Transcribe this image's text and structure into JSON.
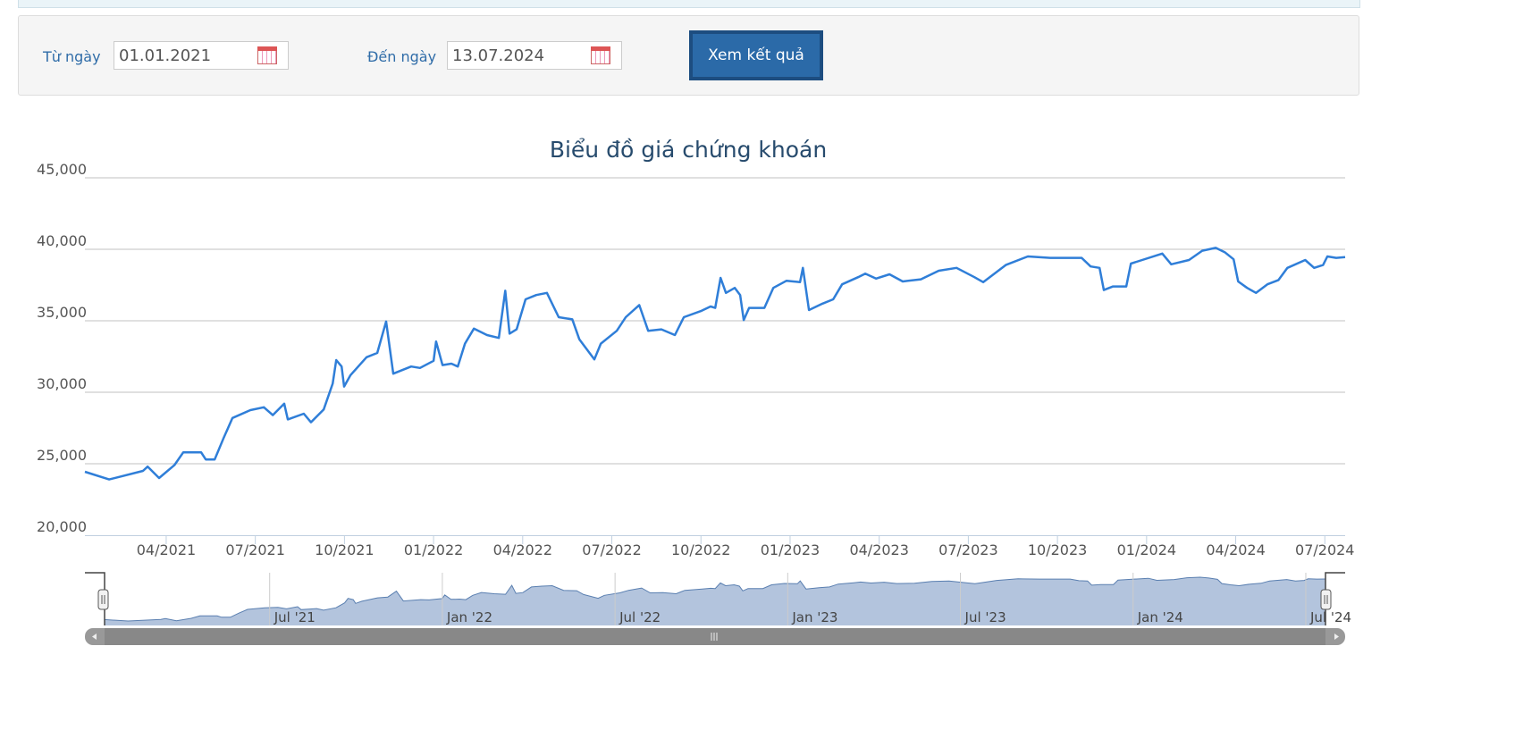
{
  "form": {
    "from_label": "Từ ngày",
    "from_value": "01.01.2021",
    "to_label": "Đến ngày",
    "to_value": "13.07.2024",
    "button": "Xem kết quả"
  },
  "chart_data": {
    "type": "line",
    "title": "Biểu đồ giá chứng khoán",
    "color": "#2f7ed8",
    "grid": true,
    "x": [
      2021.022,
      2021.09,
      2021.185,
      2021.198,
      2021.23,
      2021.273,
      2021.298,
      2021.348,
      2021.361,
      2021.386,
      2021.411,
      2021.436,
      2021.486,
      2021.524,
      2021.549,
      2021.581,
      2021.591,
      2021.636,
      2021.656,
      2021.692,
      2021.717,
      2021.727,
      2021.742,
      2021.749,
      2021.767,
      2021.812,
      2021.842,
      2021.867,
      2021.887,
      2021.937,
      2021.962,
      2022.0,
      2022.007,
      2022.025,
      2022.05,
      2022.068,
      2022.088,
      2022.113,
      2022.15,
      2022.183,
      2022.201,
      2022.213,
      2022.233,
      2022.258,
      2022.288,
      2022.318,
      2022.351,
      2022.389,
      2022.409,
      2022.451,
      2022.469,
      2022.514,
      2022.539,
      2022.577,
      2022.602,
      2022.639,
      2022.677,
      2022.702,
      2022.752,
      2022.777,
      2022.79,
      2022.805,
      2022.82,
      2022.845,
      2022.86,
      2022.87,
      2022.885,
      2022.928,
      2022.953,
      2022.99,
      2023.028,
      2023.036,
      2023.053,
      2023.091,
      2023.121,
      2023.146,
      2023.191,
      2023.211,
      2023.241,
      2023.279,
      2023.316,
      2023.367,
      2023.417,
      2023.467,
      2023.517,
      2023.542,
      2023.605,
      2023.667,
      2023.73,
      2023.818,
      2023.843,
      2023.868,
      2023.88,
      2023.906,
      2023.943,
      2023.956,
      2024.044,
      2024.069,
      2024.119,
      2024.156,
      2024.194,
      2024.219,
      2024.244,
      2024.257,
      2024.282,
      2024.307,
      2024.339,
      2024.37,
      2024.395,
      2024.445,
      2024.47,
      2024.495,
      2024.507,
      2024.532,
      2024.557
    ],
    "values": [
      24440,
      23900,
      24500,
      24800,
      24000,
      24900,
      25800,
      25800,
      25300,
      25300,
      26800,
      28200,
      28750,
      28950,
      28400,
      29200,
      28100,
      28500,
      27900,
      28800,
      30600,
      32250,
      31800,
      30400,
      31200,
      32450,
      32750,
      34950,
      31300,
      31800,
      31700,
      32200,
      33550,
      31900,
      32000,
      31800,
      33400,
      34450,
      34000,
      33800,
      37100,
      34100,
      34400,
      36500,
      36800,
      36950,
      35250,
      35100,
      33700,
      32300,
      33400,
      34300,
      35250,
      36100,
      34300,
      34400,
      34000,
      35250,
      35700,
      36000,
      35900,
      38000,
      36950,
      37300,
      36800,
      35050,
      35900,
      35900,
      37300,
      37800,
      37700,
      38700,
      35750,
      36200,
      36500,
      37550,
      38050,
      38300,
      37950,
      38250,
      37750,
      37900,
      38500,
      38700,
      38050,
      37700,
      38900,
      39500,
      39400,
      39400,
      38800,
      38700,
      37150,
      37400,
      37400,
      39000,
      39700,
      38950,
      39250,
      39900,
      40100,
      39800,
      39300,
      37750,
      37300,
      36950,
      37550,
      37850,
      38700,
      39250,
      38700,
      38900,
      39500,
      39400,
      39450
    ],
    "xlim": [
      2021.022,
      2024.557
    ],
    "xticks": [
      {
        "value": 2021.25,
        "label": "04/2021"
      },
      {
        "value": 2021.5,
        "label": "07/2021"
      },
      {
        "value": 2021.75,
        "label": "10/2021"
      },
      {
        "value": 2022.0,
        "label": "01/2022"
      },
      {
        "value": 2022.25,
        "label": "04/2022"
      },
      {
        "value": 2022.5,
        "label": "07/2022"
      },
      {
        "value": 2022.75,
        "label": "10/2022"
      },
      {
        "value": 2023.0,
        "label": "01/2023"
      },
      {
        "value": 2023.25,
        "label": "04/2023"
      },
      {
        "value": 2023.5,
        "label": "07/2023"
      },
      {
        "value": 2023.75,
        "label": "10/2023"
      },
      {
        "value": 2024.0,
        "label": "01/2024"
      },
      {
        "value": 2024.25,
        "label": "04/2024"
      },
      {
        "value": 2024.5,
        "label": "07/2024"
      }
    ],
    "ylim": [
      20000,
      45000
    ],
    "yticks": [
      {
        "value": 20000,
        "label": "20,000"
      },
      {
        "value": 25000,
        "label": "25,000"
      },
      {
        "value": 30000,
        "label": "30,000"
      },
      {
        "value": 35000,
        "label": "35,000"
      },
      {
        "value": 40000,
        "label": "40,000"
      },
      {
        "value": 45000,
        "label": "45,000"
      }
    ],
    "navigator_ticks": [
      {
        "value": 2021.5,
        "label": "Jul '21"
      },
      {
        "value": 2022.0,
        "label": "Jan '22"
      },
      {
        "value": 2022.5,
        "label": "Jul '22"
      },
      {
        "value": 2023.0,
        "label": "Jan '23"
      },
      {
        "value": 2023.5,
        "label": "Jul '23"
      },
      {
        "value": 2024.0,
        "label": "Jan '24"
      },
      {
        "value": 2024.5,
        "label": "Jul '24"
      }
    ]
  }
}
